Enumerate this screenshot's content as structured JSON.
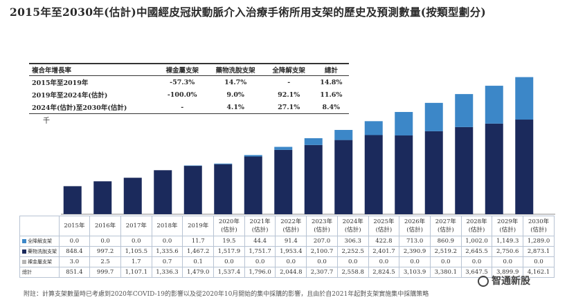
{
  "title": "2015年至2030年(估計)中國經皮冠狀動脈介入治療手術所用支架的歷史及預測數量(按類型劃分)",
  "cagr_table": {
    "headers": [
      "複合年增長率",
      "裸金屬支架",
      "藥物洗脫支架",
      "全降解支架",
      "總計"
    ],
    "rows": [
      [
        "2015年至2019年",
        "-57.3%",
        "14.7%",
        "-",
        "14.8%"
      ],
      [
        "2019年至2024年(估計)",
        "-100.0%",
        "9.0%",
        "92.1%",
        "11.6%"
      ],
      [
        "2024年(估計)至2030年(估計)",
        "-",
        "4.1%",
        "27.1%",
        "8.4%"
      ]
    ]
  },
  "unit_label": "千",
  "colors": {
    "bioresorbable": "#3c87c8",
    "drug_eluting": "#1b2a5c",
    "bare_metal": "#b5b5b5"
  },
  "chart_data": {
    "type": "bar",
    "stacked": true,
    "categories": [
      "2015年",
      "2016年",
      "2017年",
      "2018年",
      "2019年",
      "2020年(估計)",
      "2021年(估計)",
      "2022年(估計)",
      "2023年(估計)",
      "2024年(估計)",
      "2025年(估計)",
      "2026年(估計)",
      "2027年(估計)",
      "2028年(估計)",
      "2029年(估計)",
      "2030年(估計)"
    ],
    "series": [
      {
        "name": "裸金屬支架",
        "values": [
          3.0,
          2.5,
          1.7,
          0.7,
          0.1,
          0.0,
          0.0,
          0.0,
          0.0,
          0.0,
          0.0,
          0.0,
          0.0,
          0.0,
          0.0,
          0.0
        ]
      },
      {
        "name": "藥物洗脫支架",
        "values": [
          848.4,
          997.2,
          1105.5,
          1335.6,
          1467.2,
          1517.9,
          1751.7,
          1953.4,
          2100.7,
          2252.5,
          2401.7,
          2390.9,
          2519.2,
          2645.5,
          2750.6,
          2873.1
        ]
      },
      {
        "name": "全降解支架",
        "values": [
          0.0,
          0.0,
          0.0,
          0.0,
          11.7,
          19.5,
          44.4,
          91.4,
          207.0,
          306.3,
          422.8,
          713.0,
          860.9,
          1002.0,
          1149.3,
          1289.0
        ]
      }
    ],
    "totals_label": "總計",
    "totals": [
      851.4,
      999.7,
      1107.1,
      1336.3,
      1479.0,
      1537.4,
      1796.0,
      2044.8,
      2307.7,
      2558.8,
      2824.5,
      3103.9,
      3380.1,
      3647.5,
      3899.9,
      4162.1
    ],
    "ylim": [
      0,
      4300
    ]
  },
  "table": {
    "categories": [
      [
        "2015年"
      ],
      [
        "2016年"
      ],
      [
        "2017年"
      ],
      [
        "2018年"
      ],
      [
        "2019年"
      ],
      [
        "2020年",
        "(估計)"
      ],
      [
        "2021年",
        "(估計)"
      ],
      [
        "2022年",
        "(估計)"
      ],
      [
        "2023年",
        "(估計)"
      ],
      [
        "2024年",
        "(估計)"
      ],
      [
        "2025年",
        "(估計)"
      ],
      [
        "2026年",
        "(估計)"
      ],
      [
        "2027年",
        "(估計)"
      ],
      [
        "2028年",
        "(估計)"
      ],
      [
        "2029年",
        "(估計)"
      ],
      [
        "2030年",
        "(估計)"
      ]
    ],
    "rows": [
      {
        "label": "全降解支架",
        "color": "#3c87c8",
        "values": [
          "0.0",
          "0.0",
          "0.0",
          "0.0",
          "11.7",
          "19.5",
          "44.4",
          "91.4",
          "207.0",
          "306.3",
          "422.8",
          "713.0",
          "860.9",
          "1,002.0",
          "1,149.3",
          "1,289.0"
        ]
      },
      {
        "label": "藥物洗脫支架",
        "color": "#1b2a5c",
        "values": [
          "848.4",
          "997.2",
          "1,105.5",
          "1,335.6",
          "1,467.2",
          "1,517.9",
          "1,751.7",
          "1,953.4",
          "2,100.7",
          "2,252.5",
          "2,401.7",
          "2,390.9",
          "2,519.2",
          "2,645.5",
          "2,750.6",
          "2,873.1"
        ]
      },
      {
        "label": "裸金屬支架",
        "color": "#b5b5b5",
        "values": [
          "3.0",
          "2.5",
          "1.7",
          "0.7",
          "0.1",
          "0.0",
          "0.0",
          "0.0",
          "0.0",
          "0.0",
          "0.0",
          "0.0",
          "0.0",
          "0.0",
          "0.0",
          "0.0"
        ]
      },
      {
        "label": "總計",
        "color": "",
        "values": [
          "851.4",
          "999.7",
          "1,107.1",
          "1,336.3",
          "1,479.0",
          "1,537.4",
          "1,796.0",
          "2,044.8",
          "2,307.7",
          "2,558.8",
          "2,824.5",
          "3,103.9",
          "3,380.1",
          "3,647.5",
          "3,899.9",
          "4,162.1"
        ]
      }
    ]
  },
  "footnote": "附註：計算支架數量時已考慮到2020年COVID-19的影響以及從2020年10月開始的集中採購的影響，且由於自2021年起對支架實施集中採購策略",
  "watermark": "智通新股"
}
